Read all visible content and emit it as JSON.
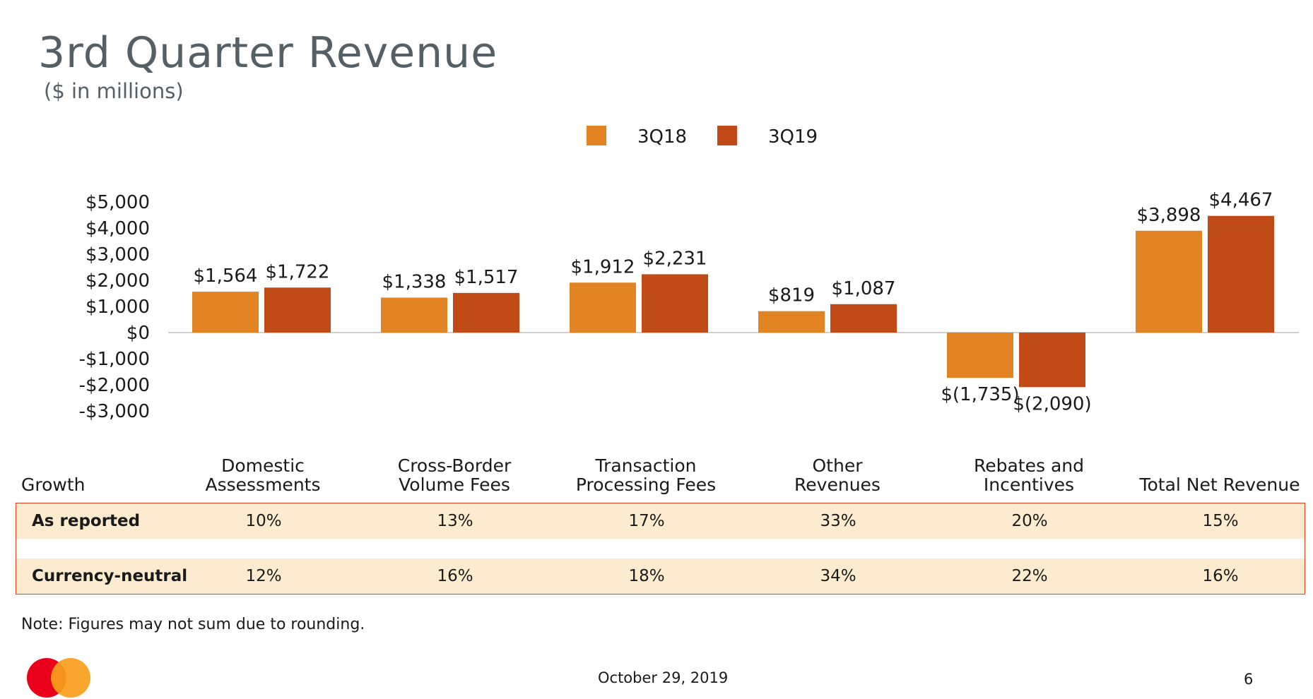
{
  "slide": {
    "title": "3rd Quarter Revenue",
    "subtitle": "($ in millions)",
    "note": "Note: Figures may not sum due to rounding.",
    "footer_date": "October 29, 2019",
    "page_number": "6",
    "logo_icon": "mastercard-logo-icon"
  },
  "colors": {
    "series_3q18": "#e38424",
    "series_3q19": "#c04b17",
    "table_border": "#e8411e",
    "table_fill": "#fdebd0",
    "logo_red": "#eb001b",
    "logo_orange": "#f79e1b"
  },
  "chart_data": {
    "type": "bar",
    "categories": [
      [
        "Domestic",
        "Assessments"
      ],
      [
        "Cross-Border",
        "Volume Fees"
      ],
      [
        "Transaction",
        "Processing Fees"
      ],
      [
        "Other",
        "Revenues"
      ],
      [
        "Rebates and",
        "Incentives"
      ],
      [
        "Total Net Revenue"
      ]
    ],
    "series": [
      {
        "name": "3Q18",
        "values": [
          1564,
          1338,
          1912,
          819,
          -1735,
          3898
        ],
        "labels": [
          "$1,564",
          "$1,338",
          "$1,912",
          "$819",
          "$(1,735)",
          "$3,898"
        ]
      },
      {
        "name": "3Q19",
        "values": [
          1722,
          1517,
          2231,
          1087,
          -2090,
          4467
        ],
        "labels": [
          "$1,722",
          "$1,517",
          "$2,231",
          "$1,087",
          "$(2,090)",
          "$4,467"
        ]
      }
    ],
    "ylim": [
      -3000,
      5000
    ],
    "y_ticks": [
      5000,
      4000,
      3000,
      2000,
      1000,
      0,
      -1000,
      -2000,
      -3000
    ],
    "y_tick_labels": [
      "$5,000",
      "$4,000",
      "$3,000",
      "$2,000",
      "$1,000",
      "$0",
      "-$1,000",
      "-$2,000",
      "-$3,000"
    ],
    "legend_position": "top-center",
    "grid": false
  },
  "growth_table": {
    "header_label": "Growth",
    "rows": [
      {
        "label": "As reported",
        "values": [
          "10%",
          "13%",
          "17%",
          "33%",
          "20%",
          "15%"
        ]
      },
      {
        "label": "Currency-neutral",
        "values": [
          "12%",
          "16%",
          "18%",
          "34%",
          "22%",
          "16%"
        ]
      }
    ]
  }
}
